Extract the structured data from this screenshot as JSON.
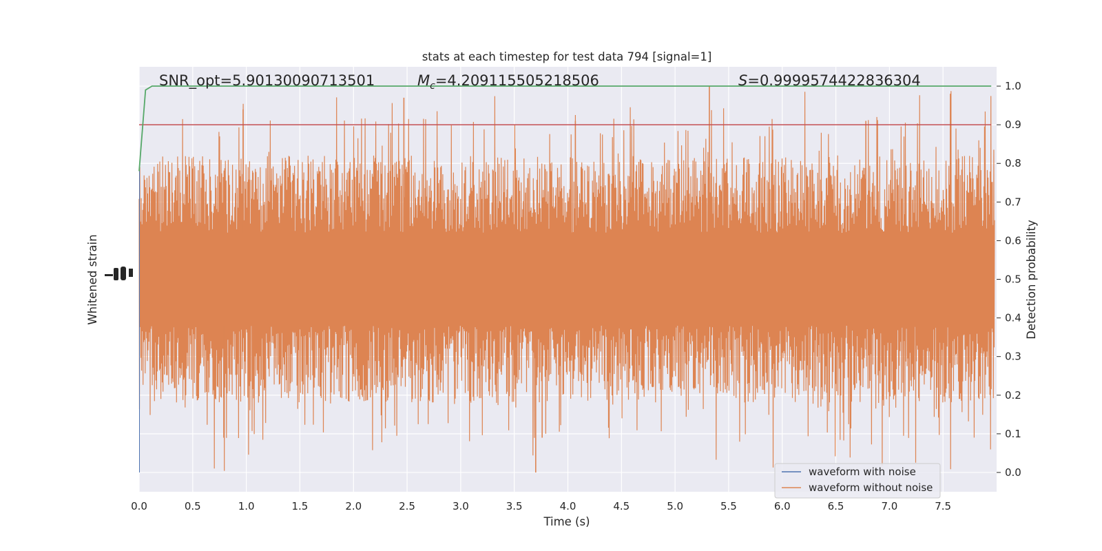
{
  "chart_data": {
    "type": "line",
    "title": "stats at each timestep for test data 794 [signal=1]",
    "xlabel": "Time (s)",
    "ylabel_left": "Whitened strain",
    "ylabel_right": "Detection probability",
    "xlim": [
      0.0,
      8.0
    ],
    "ylim_right": [
      -0.05,
      1.05
    ],
    "xticks": [
      0.0,
      0.5,
      1.0,
      1.5,
      2.0,
      2.5,
      3.0,
      3.5,
      4.0,
      4.5,
      5.0,
      5.5,
      6.0,
      6.5,
      7.0,
      7.5
    ],
    "xtick_labels": [
      "0.0",
      "0.5",
      "1.0",
      "1.5",
      "2.0",
      "2.5",
      "3.0",
      "3.5",
      "4.0",
      "4.5",
      "5.0",
      "5.5",
      "6.0",
      "6.5",
      "7.0",
      "7.5"
    ],
    "yticks_right": [
      0.0,
      0.1,
      0.2,
      0.3,
      0.4,
      0.5,
      0.6,
      0.7,
      0.8,
      0.9,
      1.0
    ],
    "ytick_labels_right": [
      "0.0",
      "0.1",
      "0.2",
      "0.3",
      "0.4",
      "0.5",
      "0.6",
      "0.7",
      "0.8",
      "0.9",
      "1.0"
    ],
    "annotations": {
      "snr": "SNR_opt=5.90130090713501",
      "mc_symbol": "M",
      "mc_sub": "c",
      "mc_value": "=4.209115505218506",
      "s_symbol": "S",
      "s_value": "=0.9999574422836304"
    },
    "threshold": {
      "value": 0.9,
      "color": "#c44e52"
    },
    "series": [
      {
        "name": "waveform with noise",
        "color": "#4c72b0",
        "description": "whitened strain, nearly flat at the left axis"
      },
      {
        "name": "waveform without noise",
        "color": "#dd8452",
        "description": "dense oscillation, center 0.5, typical envelope 0.25-0.80, peaks up to 1.0, troughs down to 0.0"
      },
      {
        "name": "",
        "color": "#55a868",
        "x": [
          0.0,
          0.06,
          0.12,
          7.95
        ],
        "values": [
          0.78,
          0.99,
          1.0,
          1.0
        ]
      }
    ],
    "legend": {
      "location": "lower-right"
    },
    "grid": true,
    "background": "#eaeaf2"
  }
}
